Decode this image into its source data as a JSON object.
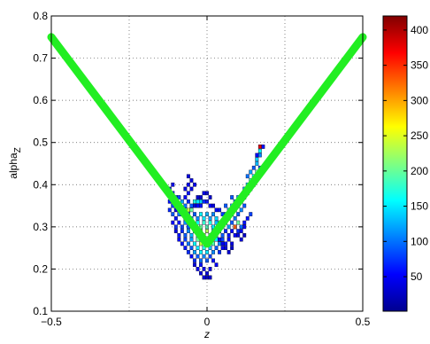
{
  "chart_data": {
    "type": "heatmap",
    "xlabel": "z",
    "ylabel": "alpha_Z",
    "xlim": [
      -0.5,
      0.5
    ],
    "ylim": [
      0.1,
      0.8
    ],
    "x_ticks": [
      "-0.5",
      "0",
      "0.5"
    ],
    "y_ticks": [
      "0.1",
      "0.2",
      "0.3",
      "0.4",
      "0.5",
      "0.6",
      "0.7",
      "0.8"
    ],
    "grid": true,
    "colormap": "jet",
    "colorbar": {
      "range": [
        1,
        420
      ],
      "ticks": [
        "50",
        "100",
        "150",
        "200",
        "250",
        "300",
        "350",
        "400"
      ],
      "tick_values": [
        50,
        100,
        150,
        200,
        250,
        300,
        350,
        400
      ]
    },
    "overlay_curve": {
      "type": "line",
      "color": "#22ee22",
      "points": [
        [
          -0.5,
          0.75
        ],
        [
          0.0,
          0.26
        ],
        [
          0.5,
          0.75
        ]
      ]
    },
    "density_cells": [
      [
        -0.12,
        0.36,
        60
      ],
      [
        -0.11,
        0.35,
        80
      ],
      [
        -0.1,
        0.34,
        40
      ],
      [
        -0.09,
        0.35,
        50
      ],
      [
        -0.12,
        0.34,
        70
      ],
      [
        -0.11,
        0.33,
        90
      ],
      [
        -0.1,
        0.32,
        60
      ],
      [
        -0.09,
        0.33,
        100
      ],
      [
        -0.08,
        0.33,
        140
      ],
      [
        -0.07,
        0.32,
        120
      ],
      [
        -0.06,
        0.33,
        80
      ],
      [
        -0.05,
        0.32,
        100
      ],
      [
        -0.04,
        0.33,
        90
      ],
      [
        -0.03,
        0.32,
        110
      ],
      [
        -0.02,
        0.33,
        160
      ],
      [
        -0.01,
        0.32,
        150
      ],
      [
        0.0,
        0.33,
        130
      ],
      [
        0.01,
        0.32,
        120
      ],
      [
        0.02,
        0.33,
        110
      ],
      [
        0.03,
        0.32,
        140
      ],
      [
        0.04,
        0.31,
        170
      ],
      [
        0.05,
        0.3,
        150
      ],
      [
        0.06,
        0.31,
        130
      ],
      [
        0.07,
        0.3,
        120
      ],
      [
        0.08,
        0.31,
        90
      ],
      [
        -0.11,
        0.31,
        50
      ],
      [
        -0.1,
        0.3,
        70
      ],
      [
        -0.09,
        0.31,
        60
      ],
      [
        -0.08,
        0.3,
        80
      ],
      [
        -0.07,
        0.31,
        110
      ],
      [
        -0.06,
        0.3,
        90
      ],
      [
        -0.05,
        0.31,
        70
      ],
      [
        -0.04,
        0.3,
        150
      ],
      [
        -0.03,
        0.31,
        160
      ],
      [
        -0.02,
        0.3,
        200
      ],
      [
        -0.01,
        0.31,
        180
      ],
      [
        0.0,
        0.3,
        190
      ],
      [
        0.01,
        0.31,
        170
      ],
      [
        0.02,
        0.3,
        150
      ],
      [
        0.03,
        0.31,
        130
      ],
      [
        -0.1,
        0.29,
        40
      ],
      [
        -0.09,
        0.28,
        60
      ],
      [
        -0.08,
        0.29,
        70
      ],
      [
        -0.07,
        0.28,
        90
      ],
      [
        -0.06,
        0.29,
        110
      ],
      [
        -0.05,
        0.28,
        130
      ],
      [
        -0.04,
        0.29,
        170
      ],
      [
        -0.03,
        0.28,
        190
      ],
      [
        -0.02,
        0.29,
        220
      ],
      [
        -0.01,
        0.28,
        240
      ],
      [
        0.0,
        0.29,
        230
      ],
      [
        0.01,
        0.28,
        210
      ],
      [
        0.02,
        0.29,
        180
      ],
      [
        0.03,
        0.28,
        140
      ],
      [
        0.04,
        0.29,
        110
      ],
      [
        0.05,
        0.28,
        90
      ],
      [
        0.06,
        0.29,
        70
      ],
      [
        0.07,
        0.28,
        60
      ],
      [
        0.08,
        0.29,
        50
      ],
      [
        -0.09,
        0.27,
        50
      ],
      [
        -0.08,
        0.26,
        60
      ],
      [
        -0.07,
        0.27,
        80
      ],
      [
        -0.06,
        0.26,
        100
      ],
      [
        -0.05,
        0.27,
        120
      ],
      [
        -0.04,
        0.26,
        160
      ],
      [
        -0.03,
        0.27,
        200
      ],
      [
        -0.02,
        0.26,
        240
      ],
      [
        -0.01,
        0.27,
        260
      ],
      [
        0.0,
        0.26,
        270
      ],
      [
        0.01,
        0.27,
        240
      ],
      [
        0.02,
        0.26,
        190
      ],
      [
        0.03,
        0.27,
        150
      ],
      [
        0.04,
        0.26,
        110
      ],
      [
        0.05,
        0.27,
        80
      ],
      [
        0.06,
        0.26,
        60
      ],
      [
        0.07,
        0.27,
        50
      ],
      [
        0.08,
        0.26,
        40
      ],
      [
        -0.07,
        0.25,
        60
      ],
      [
        -0.06,
        0.24,
        70
      ],
      [
        -0.05,
        0.25,
        90
      ],
      [
        -0.04,
        0.24,
        120
      ],
      [
        -0.03,
        0.25,
        150
      ],
      [
        -0.02,
        0.24,
        160
      ],
      [
        -0.01,
        0.25,
        170
      ],
      [
        0.0,
        0.24,
        150
      ],
      [
        0.01,
        0.25,
        130
      ],
      [
        0.02,
        0.24,
        110
      ],
      [
        0.03,
        0.25,
        90
      ],
      [
        0.04,
        0.24,
        70
      ],
      [
        0.05,
        0.25,
        50
      ],
      [
        -0.05,
        0.23,
        50
      ],
      [
        -0.04,
        0.22,
        70
      ],
      [
        -0.03,
        0.23,
        90
      ],
      [
        -0.02,
        0.22,
        100
      ],
      [
        -0.01,
        0.23,
        110
      ],
      [
        0.0,
        0.22,
        90
      ],
      [
        0.01,
        0.23,
        80
      ],
      [
        0.02,
        0.22,
        60
      ],
      [
        0.03,
        0.21,
        50
      ],
      [
        -0.04,
        0.21,
        40
      ],
      [
        -0.03,
        0.2,
        50
      ],
      [
        -0.02,
        0.21,
        60
      ],
      [
        -0.01,
        0.2,
        50
      ],
      [
        0.0,
        0.19,
        40
      ],
      [
        0.01,
        0.2,
        45
      ],
      [
        -0.02,
        0.19,
        40
      ],
      [
        -0.01,
        0.18,
        35
      ],
      [
        0.0,
        0.18,
        30
      ],
      [
        0.01,
        0.18,
        30
      ],
      [
        -0.03,
        0.37,
        30
      ],
      [
        -0.02,
        0.37,
        35
      ],
      [
        -0.01,
        0.38,
        40
      ],
      [
        0.0,
        0.38,
        35
      ],
      [
        0.01,
        0.37,
        30
      ],
      [
        -0.04,
        0.35,
        40
      ],
      [
        -0.03,
        0.35,
        50
      ],
      [
        -0.02,
        0.35,
        60
      ],
      [
        -0.01,
        0.36,
        70
      ],
      [
        0.0,
        0.36,
        60
      ],
      [
        0.01,
        0.35,
        50
      ],
      [
        0.02,
        0.35,
        40
      ],
      [
        0.03,
        0.34,
        50
      ],
      [
        0.04,
        0.34,
        60
      ],
      [
        0.05,
        0.33,
        80
      ],
      [
        0.06,
        0.33,
        100
      ],
      [
        0.07,
        0.32,
        110
      ],
      [
        0.08,
        0.33,
        120
      ],
      [
        0.09,
        0.32,
        100
      ],
      [
        0.1,
        0.33,
        90
      ],
      [
        0.06,
        0.35,
        90
      ],
      [
        0.07,
        0.34,
        120
      ],
      [
        0.08,
        0.35,
        140
      ],
      [
        0.09,
        0.34,
        170
      ],
      [
        0.1,
        0.35,
        150
      ],
      [
        0.11,
        0.34,
        110
      ],
      [
        0.12,
        0.35,
        90
      ],
      [
        0.09,
        0.3,
        300
      ],
      [
        0.1,
        0.31,
        200
      ],
      [
        0.11,
        0.3,
        100
      ],
      [
        0.12,
        0.31,
        60
      ],
      [
        0.1,
        0.29,
        70
      ],
      [
        0.09,
        0.28,
        50
      ],
      [
        0.13,
        0.32,
        60
      ],
      [
        0.14,
        0.33,
        80
      ],
      [
        0.08,
        0.37,
        90
      ],
      [
        0.09,
        0.36,
        100
      ],
      [
        0.1,
        0.37,
        120
      ],
      [
        0.11,
        0.36,
        140
      ],
      [
        0.12,
        0.37,
        110
      ],
      [
        0.13,
        0.38,
        90
      ],
      [
        0.12,
        0.39,
        120
      ],
      [
        0.13,
        0.4,
        150
      ],
      [
        0.14,
        0.39,
        110
      ],
      [
        0.14,
        0.41,
        180
      ],
      [
        0.15,
        0.4,
        140
      ],
      [
        0.13,
        0.42,
        100
      ],
      [
        0.14,
        0.43,
        120
      ],
      [
        0.15,
        0.42,
        160
      ],
      [
        0.16,
        0.43,
        200
      ],
      [
        0.15,
        0.44,
        90
      ],
      [
        0.16,
        0.45,
        130
      ],
      [
        0.17,
        0.44,
        80
      ],
      [
        0.16,
        0.46,
        140
      ],
      [
        0.17,
        0.47,
        110
      ],
      [
        0.17,
        0.48,
        160
      ],
      [
        0.18,
        0.49,
        60
      ],
      [
        0.16,
        0.47,
        50
      ],
      [
        -0.11,
        0.38,
        60
      ],
      [
        -0.1,
        0.37,
        80
      ],
      [
        -0.12,
        0.38,
        50
      ],
      [
        -0.11,
        0.4,
        50
      ],
      [
        -0.12,
        0.39,
        40
      ],
      [
        -0.06,
        0.36,
        70
      ],
      [
        -0.05,
        0.35,
        90
      ],
      [
        -0.07,
        0.35,
        100
      ],
      [
        -0.08,
        0.36,
        120
      ],
      [
        -0.09,
        0.37,
        80
      ],
      [
        -0.06,
        0.38,
        60
      ],
      [
        -0.07,
        0.37,
        50
      ],
      [
        -0.05,
        0.39,
        40
      ],
      [
        -0.06,
        0.4,
        50
      ],
      [
        -0.05,
        0.41,
        40
      ],
      [
        -0.06,
        0.42,
        40
      ],
      [
        -0.04,
        0.4,
        50
      ],
      [
        -0.07,
        0.39,
        40
      ],
      [
        -0.06,
        0.34,
        240
      ],
      [
        -0.05,
        0.34,
        200
      ],
      [
        -0.07,
        0.34,
        180
      ],
      [
        -0.08,
        0.34,
        160
      ],
      [
        -0.04,
        0.36,
        170
      ],
      [
        -0.03,
        0.36,
        150
      ],
      [
        -0.02,
        0.36,
        140
      ],
      [
        -0.06,
        0.32,
        350
      ],
      [
        0.09,
        0.3,
        330
      ],
      [
        0.17,
        0.49,
        380
      ],
      [
        0.04,
        0.27,
        60
      ],
      [
        0.05,
        0.26,
        45
      ],
      [
        0.06,
        0.25,
        40
      ],
      [
        0.07,
        0.24,
        35
      ],
      [
        0.08,
        0.25,
        30
      ],
      [
        0.1,
        0.28,
        40
      ],
      [
        0.11,
        0.29,
        45
      ],
      [
        0.12,
        0.3,
        50
      ],
      [
        0.11,
        0.27,
        35
      ],
      [
        0.12,
        0.28,
        30
      ]
    ]
  }
}
